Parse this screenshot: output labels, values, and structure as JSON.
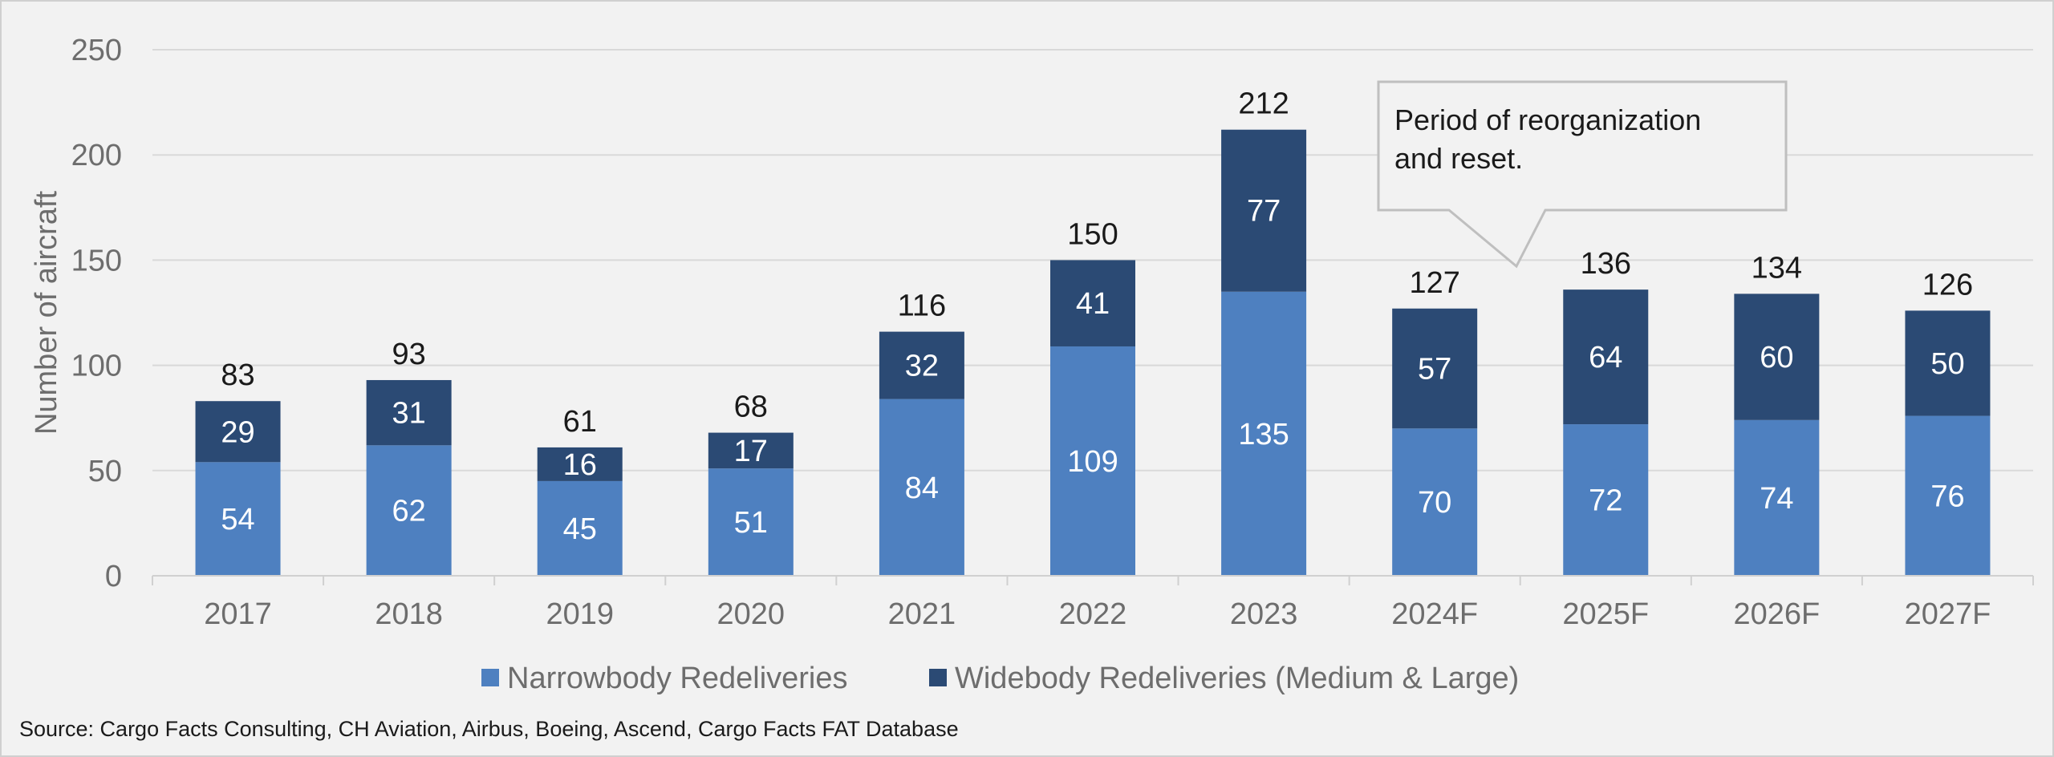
{
  "chart_data": {
    "type": "bar",
    "stacked": true,
    "title": "",
    "xlabel": "",
    "ylabel": "Number of aircraft",
    "ylim": [
      0,
      250
    ],
    "yticks": [
      0,
      50,
      100,
      150,
      200,
      250
    ],
    "grid": true,
    "legend_position": "bottom",
    "categories": [
      "2017",
      "2018",
      "2019",
      "2020",
      "2021",
      "2022",
      "2023",
      "2024F",
      "2025F",
      "2026F",
      "2027F"
    ],
    "series": [
      {
        "name": "Narrowbody Redeliveries",
        "color": "#4e80c0",
        "values": [
          54,
          62,
          45,
          51,
          84,
          109,
          135,
          70,
          72,
          74,
          76
        ]
      },
      {
        "name": "Widebody Redeliveries (Medium & Large)",
        "color": "#2b4a74",
        "values": [
          29,
          31,
          16,
          17,
          32,
          41,
          77,
          57,
          64,
          60,
          50
        ]
      }
    ],
    "totals": [
      83,
      93,
      61,
      68,
      116,
      150,
      212,
      127,
      136,
      134,
      126
    ],
    "annotation": {
      "lines": [
        "Period of reorganization",
        "and reset."
      ],
      "points_to": "2024F"
    },
    "source": "Source: Cargo Facts Consulting, CH Aviation, Airbus, Boeing, Ascend, Cargo Facts FAT Database"
  }
}
